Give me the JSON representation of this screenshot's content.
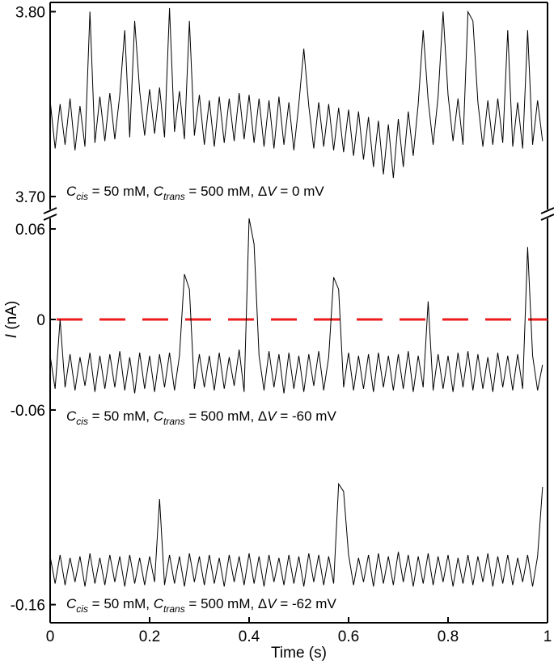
{
  "chart_data": [
    {
      "type": "line",
      "x": [
        0,
        0.01,
        0.02,
        0.03,
        0.04,
        0.05,
        0.06,
        0.07,
        0.08,
        0.09,
        0.1,
        0.11,
        0.12,
        0.13,
        0.14,
        0.15,
        0.16,
        0.17,
        0.18,
        0.19,
        0.2,
        0.21,
        0.22,
        0.23,
        0.24,
        0.25,
        0.26,
        0.27,
        0.28,
        0.29,
        0.3,
        0.31,
        0.32,
        0.33,
        0.34,
        0.35,
        0.36,
        0.37,
        0.38,
        0.39,
        0.4,
        0.41,
        0.42,
        0.43,
        0.44,
        0.45,
        0.46,
        0.47,
        0.48,
        0.49,
        0.5,
        0.51,
        0.52,
        0.53,
        0.54,
        0.55,
        0.56,
        0.57,
        0.58,
        0.59,
        0.6,
        0.61,
        0.62,
        0.63,
        0.64,
        0.65,
        0.66,
        0.67,
        0.68,
        0.69,
        0.7,
        0.71,
        0.72,
        0.73,
        0.74,
        0.75,
        0.76,
        0.77,
        0.78,
        0.79,
        0.8,
        0.81,
        0.82,
        0.83,
        0.84,
        0.85,
        0.86,
        0.87,
        0.88,
        0.89,
        0.9,
        0.91,
        0.92,
        0.93,
        0.94,
        0.95,
        0.96,
        0.97,
        0.98,
        0.99
      ],
      "series": [
        {
          "color": "#000000",
          "values": [
            3.752,
            3.726,
            3.75,
            3.728,
            3.753,
            3.725,
            3.749,
            3.727,
            3.8,
            3.729,
            3.754,
            3.73,
            3.756,
            3.731,
            3.755,
            3.79,
            3.732,
            3.795,
            3.757,
            3.733,
            3.758,
            3.734,
            3.759,
            3.732,
            3.802,
            3.735,
            3.757,
            3.731,
            3.795,
            3.733,
            3.755,
            3.728,
            3.752,
            3.727,
            3.754,
            3.729,
            3.753,
            3.73,
            3.756,
            3.731,
            3.755,
            3.729,
            3.753,
            3.727,
            3.752,
            3.726,
            3.754,
            3.728,
            3.751,
            3.725,
            3.75,
            3.78,
            3.749,
            3.726,
            3.751,
            3.727,
            3.75,
            3.725,
            3.748,
            3.724,
            3.747,
            3.722,
            3.746,
            3.72,
            3.743,
            3.716,
            3.741,
            3.712,
            3.739,
            3.71,
            3.742,
            3.716,
            3.746,
            3.722,
            3.75,
            3.79,
            3.752,
            3.728,
            3.754,
            3.8,
            3.755,
            3.73,
            3.753,
            3.728,
            3.8,
            3.795,
            3.751,
            3.727,
            3.752,
            3.728,
            3.753,
            3.729,
            3.79,
            3.727,
            3.751,
            3.726,
            3.79,
            3.728,
            3.752,
            3.73
          ]
        }
      ],
      "xlim": [
        0,
        1
      ],
      "ylim": [
        3.693,
        3.805
      ],
      "yticks": [
        {
          "value": 3.7,
          "label": "3.70"
        },
        {
          "value": 3.8,
          "label": "3.80"
        }
      ],
      "annotation": [
        "C",
        "cis",
        " = 50 mM, ",
        "C",
        "trans",
        " = 500 mM, Δ",
        "V",
        " = 0 mV"
      ]
    },
    {
      "type": "line",
      "x": [
        0,
        0.01,
        0.02,
        0.03,
        0.04,
        0.05,
        0.06,
        0.07,
        0.08,
        0.09,
        0.1,
        0.11,
        0.12,
        0.13,
        0.14,
        0.15,
        0.16,
        0.17,
        0.18,
        0.19,
        0.2,
        0.21,
        0.22,
        0.23,
        0.24,
        0.25,
        0.26,
        0.27,
        0.28,
        0.29,
        0.3,
        0.31,
        0.32,
        0.33,
        0.34,
        0.35,
        0.36,
        0.37,
        0.38,
        0.39,
        0.4,
        0.41,
        0.42,
        0.43,
        0.44,
        0.45,
        0.46,
        0.47,
        0.48,
        0.49,
        0.5,
        0.51,
        0.52,
        0.53,
        0.54,
        0.55,
        0.56,
        0.57,
        0.58,
        0.59,
        0.6,
        0.61,
        0.62,
        0.63,
        0.64,
        0.65,
        0.66,
        0.67,
        0.68,
        0.69,
        0.7,
        0.71,
        0.72,
        0.73,
        0.74,
        0.75,
        0.76,
        0.77,
        0.78,
        0.79,
        0.8,
        0.81,
        0.82,
        0.83,
        0.84,
        0.85,
        0.86,
        0.87,
        0.88,
        0.89,
        0.9,
        0.91,
        0.92,
        0.93,
        0.94,
        0.95,
        0.96,
        0.97,
        0.98,
        0.99
      ],
      "series": [
        {
          "color": "#000000",
          "values": [
            -0.024,
            -0.046,
            0.0,
            -0.045,
            -0.023,
            -0.047,
            -0.025,
            -0.044,
            -0.022,
            -0.048,
            -0.024,
            -0.046,
            -0.023,
            -0.045,
            -0.021,
            -0.047,
            -0.025,
            -0.049,
            -0.022,
            -0.046,
            -0.024,
            -0.048,
            -0.023,
            -0.045,
            -0.022,
            -0.047,
            -0.024,
            0.03,
            0.02,
            -0.046,
            -0.023,
            -0.045,
            -0.024,
            -0.047,
            -0.022,
            -0.046,
            -0.025,
            -0.044,
            -0.02,
            -0.048,
            0.067,
            0.05,
            -0.024,
            -0.047,
            -0.021,
            -0.045,
            -0.023,
            -0.049,
            -0.022,
            -0.046,
            -0.024,
            -0.048,
            -0.023,
            -0.044,
            -0.021,
            -0.047,
            -0.025,
            0.028,
            0.02,
            -0.045,
            -0.022,
            -0.047,
            -0.024,
            -0.046,
            -0.023,
            -0.048,
            -0.022,
            -0.045,
            -0.024,
            -0.047,
            -0.023,
            -0.046,
            -0.021,
            -0.048,
            -0.024,
            -0.045,
            0.012,
            -0.047,
            -0.023,
            -0.046,
            -0.024,
            -0.048,
            -0.022,
            -0.045,
            -0.021,
            -0.047,
            -0.023,
            -0.046,
            -0.025,
            -0.048,
            -0.022,
            -0.045,
            -0.024,
            -0.047,
            -0.023,
            -0.046,
            0.048,
            -0.024,
            -0.047,
            -0.03
          ]
        }
      ],
      "xlim": [
        0,
        1
      ],
      "ylim": [
        -0.067,
        0.067
      ],
      "yticks": [
        -0.06,
        0,
        0.06
      ],
      "reference_line": {
        "value": 0,
        "color": "#ee1c1c"
      },
      "ylabel": [
        "I",
        " (nA)"
      ],
      "annotation": [
        "C",
        "cis",
        " = 50 mM, ",
        "C",
        "trans",
        " = 500 mM, Δ",
        "V",
        " = -60 mV"
      ]
    },
    {
      "type": "line",
      "x": [
        0,
        0.01,
        0.02,
        0.03,
        0.04,
        0.05,
        0.06,
        0.07,
        0.08,
        0.09,
        0.1,
        0.11,
        0.12,
        0.13,
        0.14,
        0.15,
        0.16,
        0.17,
        0.18,
        0.19,
        0.2,
        0.21,
        0.22,
        0.23,
        0.24,
        0.25,
        0.26,
        0.27,
        0.28,
        0.29,
        0.3,
        0.31,
        0.32,
        0.33,
        0.34,
        0.35,
        0.36,
        0.37,
        0.38,
        0.39,
        0.4,
        0.41,
        0.42,
        0.43,
        0.44,
        0.45,
        0.46,
        0.47,
        0.48,
        0.49,
        0.5,
        0.51,
        0.52,
        0.53,
        0.54,
        0.55,
        0.56,
        0.57,
        0.58,
        0.59,
        0.6,
        0.61,
        0.62,
        0.63,
        0.64,
        0.65,
        0.66,
        0.67,
        0.68,
        0.69,
        0.7,
        0.71,
        0.72,
        0.73,
        0.74,
        0.75,
        0.76,
        0.77,
        0.78,
        0.79,
        0.8,
        0.81,
        0.82,
        0.83,
        0.84,
        0.85,
        0.86,
        0.87,
        0.88,
        0.89,
        0.9,
        0.91,
        0.92,
        0.93,
        0.94,
        0.95,
        0.96,
        0.97,
        0.98,
        0.99
      ],
      "series": [
        {
          "color": "#000000",
          "values": [
            -0.128,
            -0.146,
            -0.127,
            -0.147,
            -0.129,
            -0.145,
            -0.128,
            -0.148,
            -0.126,
            -0.146,
            -0.129,
            -0.147,
            -0.127,
            -0.145,
            -0.128,
            -0.148,
            -0.127,
            -0.146,
            -0.129,
            -0.147,
            -0.128,
            -0.145,
            -0.09,
            -0.147,
            -0.127,
            -0.146,
            -0.128,
            -0.148,
            -0.126,
            -0.145,
            -0.128,
            -0.147,
            -0.127,
            -0.146,
            -0.129,
            -0.148,
            -0.127,
            -0.145,
            -0.128,
            -0.147,
            -0.126,
            -0.146,
            -0.128,
            -0.148,
            -0.127,
            -0.145,
            -0.129,
            -0.147,
            -0.127,
            -0.146,
            -0.128,
            -0.148,
            -0.126,
            -0.145,
            -0.127,
            -0.147,
            -0.128,
            -0.146,
            -0.08,
            -0.085,
            -0.127,
            -0.147,
            -0.129,
            -0.145,
            -0.127,
            -0.148,
            -0.126,
            -0.146,
            -0.128,
            -0.147,
            -0.125,
            -0.145,
            -0.127,
            -0.148,
            -0.128,
            -0.146,
            -0.126,
            -0.147,
            -0.128,
            -0.145,
            -0.127,
            -0.148,
            -0.129,
            -0.146,
            -0.127,
            -0.147,
            -0.128,
            -0.145,
            -0.126,
            -0.148,
            -0.128,
            -0.146,
            -0.127,
            -0.147,
            -0.129,
            -0.145,
            -0.127,
            -0.148,
            -0.128,
            -0.082
          ]
        }
      ],
      "xlim": [
        0,
        1
      ],
      "ylim": [
        -0.172,
        -0.038
      ],
      "yticks": [
        -0.16
      ],
      "xticks": [
        0,
        0.2,
        0.4,
        0.6,
        0.8,
        1
      ],
      "xlabel": "Time (s)",
      "annotation": [
        "C",
        "cis",
        " = 50 mM, ",
        "C",
        "trans",
        " = 500 mM, Δ",
        "V",
        " = -62 mV"
      ]
    }
  ]
}
